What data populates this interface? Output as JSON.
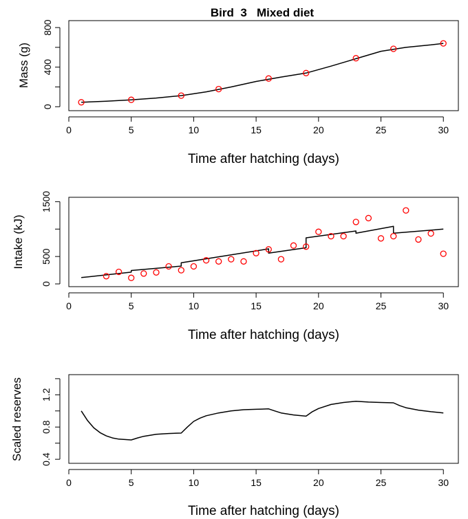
{
  "title": "Bird  3   Mixed diet",
  "chart_data": [
    {
      "type": "line",
      "ylabel": "Mass (g)",
      "xlabel": "Time after hatching (days)",
      "xlim": [
        0,
        31.2
      ],
      "ylim": [
        -40,
        870
      ],
      "xticks": [
        0,
        5,
        10,
        15,
        20,
        25,
        30
      ],
      "yticks": [
        0,
        200,
        400,
        600,
        800
      ],
      "ytick_labels": [
        "0",
        "",
        "400",
        "",
        "800"
      ],
      "grid": false,
      "series": [
        {
          "kind": "line",
          "color": "#000000",
          "x": [
            1,
            3,
            5,
            7,
            9,
            11,
            13,
            15,
            17,
            19,
            21,
            23,
            25,
            27,
            29,
            30
          ],
          "y": [
            45,
            55,
            70,
            88,
            112,
            150,
            200,
            255,
            300,
            340,
            410,
            485,
            560,
            600,
            625,
            640
          ]
        },
        {
          "kind": "points",
          "color": "#ff0000",
          "x": [
            1,
            5,
            9,
            12,
            16,
            19,
            23,
            26,
            30
          ],
          "y": [
            45,
            70,
            112,
            178,
            285,
            340,
            490,
            585,
            640
          ]
        }
      ]
    },
    {
      "type": "line",
      "ylabel": "Intake (kJ)",
      "xlabel": "Time after hatching (days)",
      "xlim": [
        0,
        31.2
      ],
      "ylim": [
        -50,
        1580
      ],
      "xticks": [
        0,
        5,
        10,
        15,
        20,
        25,
        30
      ],
      "yticks": [
        0,
        500,
        1000,
        1500
      ],
      "ytick_labels": [
        "0",
        "500",
        "",
        "1500"
      ],
      "grid": false,
      "series": [
        {
          "kind": "line",
          "color": "#000000",
          "x": [
            1,
            5,
            5,
            9,
            9,
            16,
            16,
            19,
            19,
            23,
            23,
            26,
            26,
            30
          ],
          "y": [
            115,
            215,
            245,
            325,
            385,
            640,
            560,
            660,
            840,
            965,
            925,
            1050,
            925,
            1000
          ]
        },
        {
          "kind": "points",
          "color": "#ff0000",
          "x": [
            3,
            4,
            5,
            6,
            7,
            8,
            9,
            10,
            11,
            12,
            13,
            14,
            15,
            16,
            17,
            18,
            19,
            20,
            21,
            22,
            23,
            24,
            25,
            26,
            27,
            28,
            29,
            30
          ],
          "y": [
            140,
            220,
            110,
            190,
            210,
            320,
            250,
            320,
            430,
            410,
            450,
            410,
            560,
            630,
            450,
            700,
            680,
            950,
            870,
            870,
            1130,
            1200,
            830,
            870,
            1340,
            810,
            920,
            550
          ]
        }
      ]
    },
    {
      "type": "line",
      "ylabel": "Scaled reserves",
      "xlabel": "Time after hatching (days)",
      "xlim": [
        0,
        31.2
      ],
      "ylim": [
        0.35,
        1.45
      ],
      "xticks": [
        0,
        5,
        10,
        15,
        20,
        25,
        30
      ],
      "yticks": [
        0.4,
        0.6,
        0.8,
        1.0,
        1.2,
        1.4
      ],
      "ytick_labels": [
        "0.4",
        "",
        "0.8",
        "",
        "1.2",
        ""
      ],
      "grid": false,
      "series": [
        {
          "kind": "line",
          "color": "#000000",
          "x": [
            1,
            1.5,
            2,
            2.5,
            3,
            3.5,
            4,
            4.5,
            5,
            5.5,
            6,
            7,
            8,
            9,
            9.5,
            10,
            10.5,
            11,
            12,
            13,
            14,
            15,
            16,
            16.5,
            17,
            18,
            19,
            19.5,
            20,
            21,
            22,
            23,
            24,
            25,
            26,
            26.5,
            27,
            28,
            29,
            30
          ],
          "y": [
            1.0,
            0.88,
            0.79,
            0.73,
            0.69,
            0.665,
            0.65,
            0.645,
            0.64,
            0.665,
            0.685,
            0.71,
            0.72,
            0.725,
            0.8,
            0.87,
            0.91,
            0.94,
            0.975,
            1.0,
            1.015,
            1.02,
            1.025,
            1.0,
            0.975,
            0.95,
            0.935,
            0.99,
            1.03,
            1.08,
            1.105,
            1.12,
            1.11,
            1.105,
            1.1,
            1.065,
            1.04,
            1.01,
            0.99,
            0.975
          ]
        }
      ]
    }
  ]
}
